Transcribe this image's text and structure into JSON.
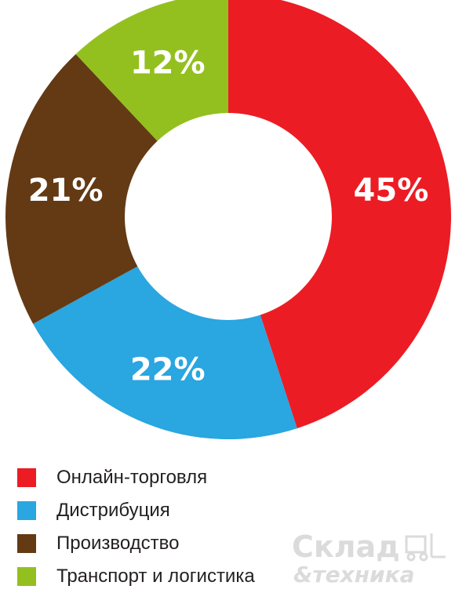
{
  "chart_data": {
    "type": "pie",
    "donut": true,
    "slices": [
      {
        "label": "Онлайн-торговля",
        "value": 45,
        "value_label": "45%",
        "color": "#ec1c24"
      },
      {
        "label": "Дистрибуция",
        "value": 22,
        "value_label": "22%",
        "color": "#2aa6e0"
      },
      {
        "label": "Производство",
        "value": 21,
        "value_label": "21%",
        "color": "#633a14"
      },
      {
        "label": "Транспорт  и логистика",
        "value": 12,
        "value_label": "12%",
        "color": "#93c01f"
      }
    ],
    "legend_position": "bottom-left"
  },
  "watermark": {
    "line1": "Склад",
    "line2": "&техника",
    "icon": "forklift-icon"
  }
}
